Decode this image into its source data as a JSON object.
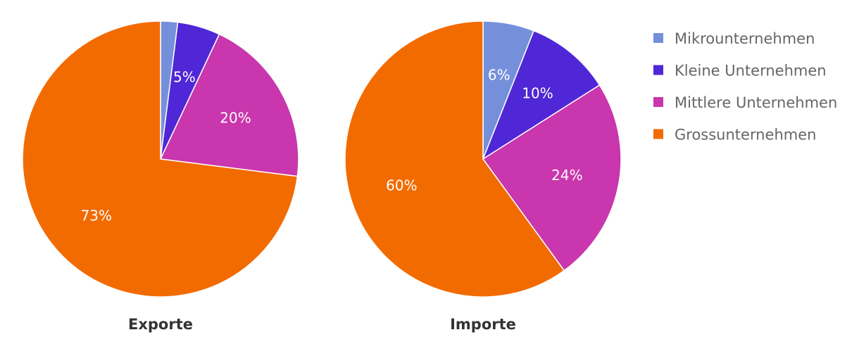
{
  "chart_data": [
    {
      "type": "pie",
      "title": "Exporte",
      "categories": [
        "Mikrounternehmen",
        "Kleine Unternehmen",
        "Mittlere Unternehmen",
        "Grossunternehmen"
      ],
      "values": [
        2,
        5,
        20,
        73
      ],
      "value_labels": [
        "",
        "5%",
        "20%",
        "73%"
      ],
      "colors": [
        "#7590db",
        "#4f27d6",
        "#c936ad",
        "#f26b00"
      ]
    },
    {
      "type": "pie",
      "title": "Importe",
      "categories": [
        "Mikrounternehmen",
        "Kleine Unternehmen",
        "Mittlere Unternehmen",
        "Grossunternehmen"
      ],
      "values": [
        6,
        10,
        24,
        60
      ],
      "value_labels": [
        "6%",
        "10%",
        "24%",
        "60%"
      ],
      "colors": [
        "#7590db",
        "#4f27d6",
        "#c936ad",
        "#f26b00"
      ]
    }
  ],
  "legend": {
    "placement": "top-right",
    "items": [
      {
        "label": "Mikrounternehmen",
        "color": "#7590db"
      },
      {
        "label": "Kleine Unternehmen",
        "color": "#4f27d6"
      },
      {
        "label": "Mittlere Unternehmen",
        "color": "#c936ad"
      },
      {
        "label": "Grossunternehmen",
        "color": "#f26b00"
      }
    ]
  }
}
